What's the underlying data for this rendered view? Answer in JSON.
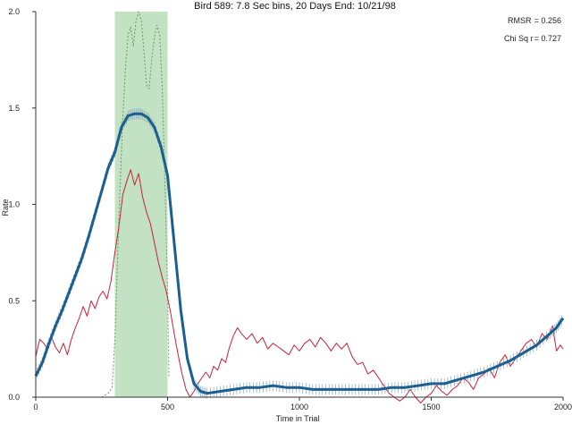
{
  "chart_data": {
    "type": "line",
    "title": "Bird 589: 7.8 Sec bins, 20 Days End: 10/21/98",
    "xlabel": "Time in Trial",
    "ylabel": "Rate",
    "xlim": [
      0,
      2000
    ],
    "ylim": [
      0,
      2.0
    ],
    "x_ticks": [
      0,
      500,
      1000,
      1500,
      2000
    ],
    "x_tick_labels": [
      "0",
      "500",
      "1000",
      "1500",
      "2000"
    ],
    "y_ticks": [
      0,
      0.5,
      1.0,
      1.5,
      2.0
    ],
    "y_tick_labels": [
      "0.0",
      "0.5",
      "1.0",
      "1.5",
      "2.0"
    ],
    "grid": false,
    "highlight_band": {
      "x0": 300,
      "x1": 500,
      "color": "#b9dcb9"
    },
    "stats": [
      {
        "label": "RMSR",
        "value": "= 0.256"
      },
      {
        "label": "Chi Sq r",
        "value": "= 0.727"
      }
    ],
    "series": [
      {
        "style": "thick-with-errorbars",
        "color": "#1a5f8f",
        "points": [
          [
            0,
            0.11
          ],
          [
            25,
            0.18
          ],
          [
            50,
            0.28
          ],
          [
            75,
            0.37
          ],
          [
            100,
            0.45
          ],
          [
            125,
            0.54
          ],
          [
            150,
            0.63
          ],
          [
            175,
            0.72
          ],
          [
            200,
            0.83
          ],
          [
            225,
            0.95
          ],
          [
            250,
            1.07
          ],
          [
            275,
            1.19
          ],
          [
            300,
            1.27
          ],
          [
            325,
            1.4
          ],
          [
            350,
            1.46
          ],
          [
            375,
            1.47
          ],
          [
            400,
            1.47
          ],
          [
            425,
            1.45
          ],
          [
            450,
            1.4
          ],
          [
            475,
            1.3
          ],
          [
            500,
            1.15
          ],
          [
            525,
            0.8
          ],
          [
            550,
            0.45
          ],
          [
            575,
            0.2
          ],
          [
            600,
            0.07
          ],
          [
            625,
            0.03
          ],
          [
            650,
            0.02
          ],
          [
            700,
            0.03
          ],
          [
            750,
            0.04
          ],
          [
            800,
            0.05
          ],
          [
            850,
            0.05
          ],
          [
            900,
            0.06
          ],
          [
            950,
            0.05
          ],
          [
            1000,
            0.05
          ],
          [
            1050,
            0.04
          ],
          [
            1100,
            0.04
          ],
          [
            1150,
            0.04
          ],
          [
            1200,
            0.04
          ],
          [
            1250,
            0.04
          ],
          [
            1300,
            0.04
          ],
          [
            1350,
            0.05
          ],
          [
            1400,
            0.05
          ],
          [
            1450,
            0.06
          ],
          [
            1500,
            0.07
          ],
          [
            1550,
            0.07
          ],
          [
            1600,
            0.09
          ],
          [
            1650,
            0.11
          ],
          [
            1700,
            0.13
          ],
          [
            1750,
            0.16
          ],
          [
            1800,
            0.19
          ],
          [
            1850,
            0.23
          ],
          [
            1900,
            0.27
          ],
          [
            1950,
            0.33
          ],
          [
            1975,
            0.36
          ],
          [
            2000,
            0.41
          ]
        ]
      },
      {
        "style": "thin",
        "color": "#cc1f3a",
        "points": [
          [
            0,
            0.21
          ],
          [
            15,
            0.3
          ],
          [
            30,
            0.28
          ],
          [
            45,
            0.25
          ],
          [
            60,
            0.31
          ],
          [
            75,
            0.26
          ],
          [
            90,
            0.23
          ],
          [
            105,
            0.28
          ],
          [
            120,
            0.22
          ],
          [
            135,
            0.3
          ],
          [
            150,
            0.36
          ],
          [
            165,
            0.41
          ],
          [
            180,
            0.47
          ],
          [
            195,
            0.42
          ],
          [
            210,
            0.5
          ],
          [
            225,
            0.46
          ],
          [
            240,
            0.52
          ],
          [
            255,
            0.55
          ],
          [
            270,
            0.51
          ],
          [
            285,
            0.6
          ],
          [
            300,
            0.75
          ],
          [
            315,
            0.88
          ],
          [
            330,
            1.05
          ],
          [
            345,
            1.12
          ],
          [
            360,
            1.18
          ],
          [
            375,
            1.1
          ],
          [
            390,
            1.16
          ],
          [
            405,
            1.04
          ],
          [
            420,
            0.96
          ],
          [
            435,
            0.9
          ],
          [
            450,
            0.8
          ],
          [
            465,
            0.7
          ],
          [
            480,
            0.62
          ],
          [
            495,
            0.55
          ],
          [
            510,
            0.45
          ],
          [
            525,
            0.33
          ],
          [
            540,
            0.22
          ],
          [
            555,
            0.12
          ],
          [
            570,
            0.04
          ],
          [
            585,
            0.0
          ],
          [
            600,
            0.03
          ],
          [
            615,
            0.07
          ],
          [
            630,
            0.1
          ],
          [
            645,
            0.13
          ],
          [
            660,
            0.1
          ],
          [
            675,
            0.16
          ],
          [
            690,
            0.14
          ],
          [
            705,
            0.2
          ],
          [
            720,
            0.18
          ],
          [
            735,
            0.26
          ],
          [
            750,
            0.32
          ],
          [
            765,
            0.36
          ],
          [
            780,
            0.33
          ],
          [
            800,
            0.3
          ],
          [
            820,
            0.33
          ],
          [
            840,
            0.28
          ],
          [
            860,
            0.31
          ],
          [
            880,
            0.25
          ],
          [
            900,
            0.28
          ],
          [
            920,
            0.26
          ],
          [
            940,
            0.24
          ],
          [
            960,
            0.22
          ],
          [
            980,
            0.27
          ],
          [
            1000,
            0.24
          ],
          [
            1020,
            0.28
          ],
          [
            1040,
            0.3
          ],
          [
            1060,
            0.26
          ],
          [
            1080,
            0.31
          ],
          [
            1100,
            0.28
          ],
          [
            1120,
            0.24
          ],
          [
            1140,
            0.28
          ],
          [
            1160,
            0.25
          ],
          [
            1180,
            0.28
          ],
          [
            1200,
            0.21
          ],
          [
            1220,
            0.17
          ],
          [
            1240,
            0.18
          ],
          [
            1260,
            0.12
          ],
          [
            1280,
            0.14
          ],
          [
            1300,
            0.1
          ],
          [
            1320,
            0.06
          ],
          [
            1340,
            0.02
          ],
          [
            1360,
            0.0
          ],
          [
            1380,
            -0.02
          ],
          [
            1400,
            0.0
          ],
          [
            1420,
            0.04
          ],
          [
            1440,
            0.0
          ],
          [
            1460,
            -0.03
          ],
          [
            1480,
            0.0
          ],
          [
            1500,
            0.02
          ],
          [
            1520,
            0.06
          ],
          [
            1540,
            0.03
          ],
          [
            1560,
            0.01
          ],
          [
            1580,
            0.04
          ],
          [
            1600,
            0.06
          ],
          [
            1620,
            0.1
          ],
          [
            1640,
            0.08
          ],
          [
            1660,
            0.04
          ],
          [
            1680,
            0.1
          ],
          [
            1700,
            0.12
          ],
          [
            1720,
            0.15
          ],
          [
            1740,
            0.1
          ],
          [
            1760,
            0.18
          ],
          [
            1780,
            0.22
          ],
          [
            1800,
            0.16
          ],
          [
            1820,
            0.2
          ],
          [
            1840,
            0.24
          ],
          [
            1860,
            0.28
          ],
          [
            1880,
            0.3
          ],
          [
            1900,
            0.26
          ],
          [
            1920,
            0.33
          ],
          [
            1940,
            0.3
          ],
          [
            1960,
            0.37
          ],
          [
            1975,
            0.24
          ],
          [
            1990,
            0.27
          ],
          [
            2000,
            0.25
          ]
        ]
      },
      {
        "style": "dotted",
        "color": "#6a9a6a",
        "points": [
          [
            250,
            0.0
          ],
          [
            275,
            0.02
          ],
          [
            290,
            0.05
          ],
          [
            300,
            0.3
          ],
          [
            310,
            0.7
          ],
          [
            320,
            1.1
          ],
          [
            330,
            1.45
          ],
          [
            340,
            1.7
          ],
          [
            350,
            1.88
          ],
          [
            360,
            1.92
          ],
          [
            370,
            1.82
          ],
          [
            380,
            1.95
          ],
          [
            390,
            2.0
          ],
          [
            400,
            1.96
          ],
          [
            410,
            1.8
          ],
          [
            420,
            1.62
          ],
          [
            430,
            1.6
          ],
          [
            440,
            1.75
          ],
          [
            450,
            1.87
          ],
          [
            460,
            1.93
          ],
          [
            470,
            1.88
          ],
          [
            480,
            1.6
          ],
          [
            490,
            1.1
          ],
          [
            500,
            0.55
          ],
          [
            505,
            0.1
          ]
        ]
      }
    ]
  }
}
